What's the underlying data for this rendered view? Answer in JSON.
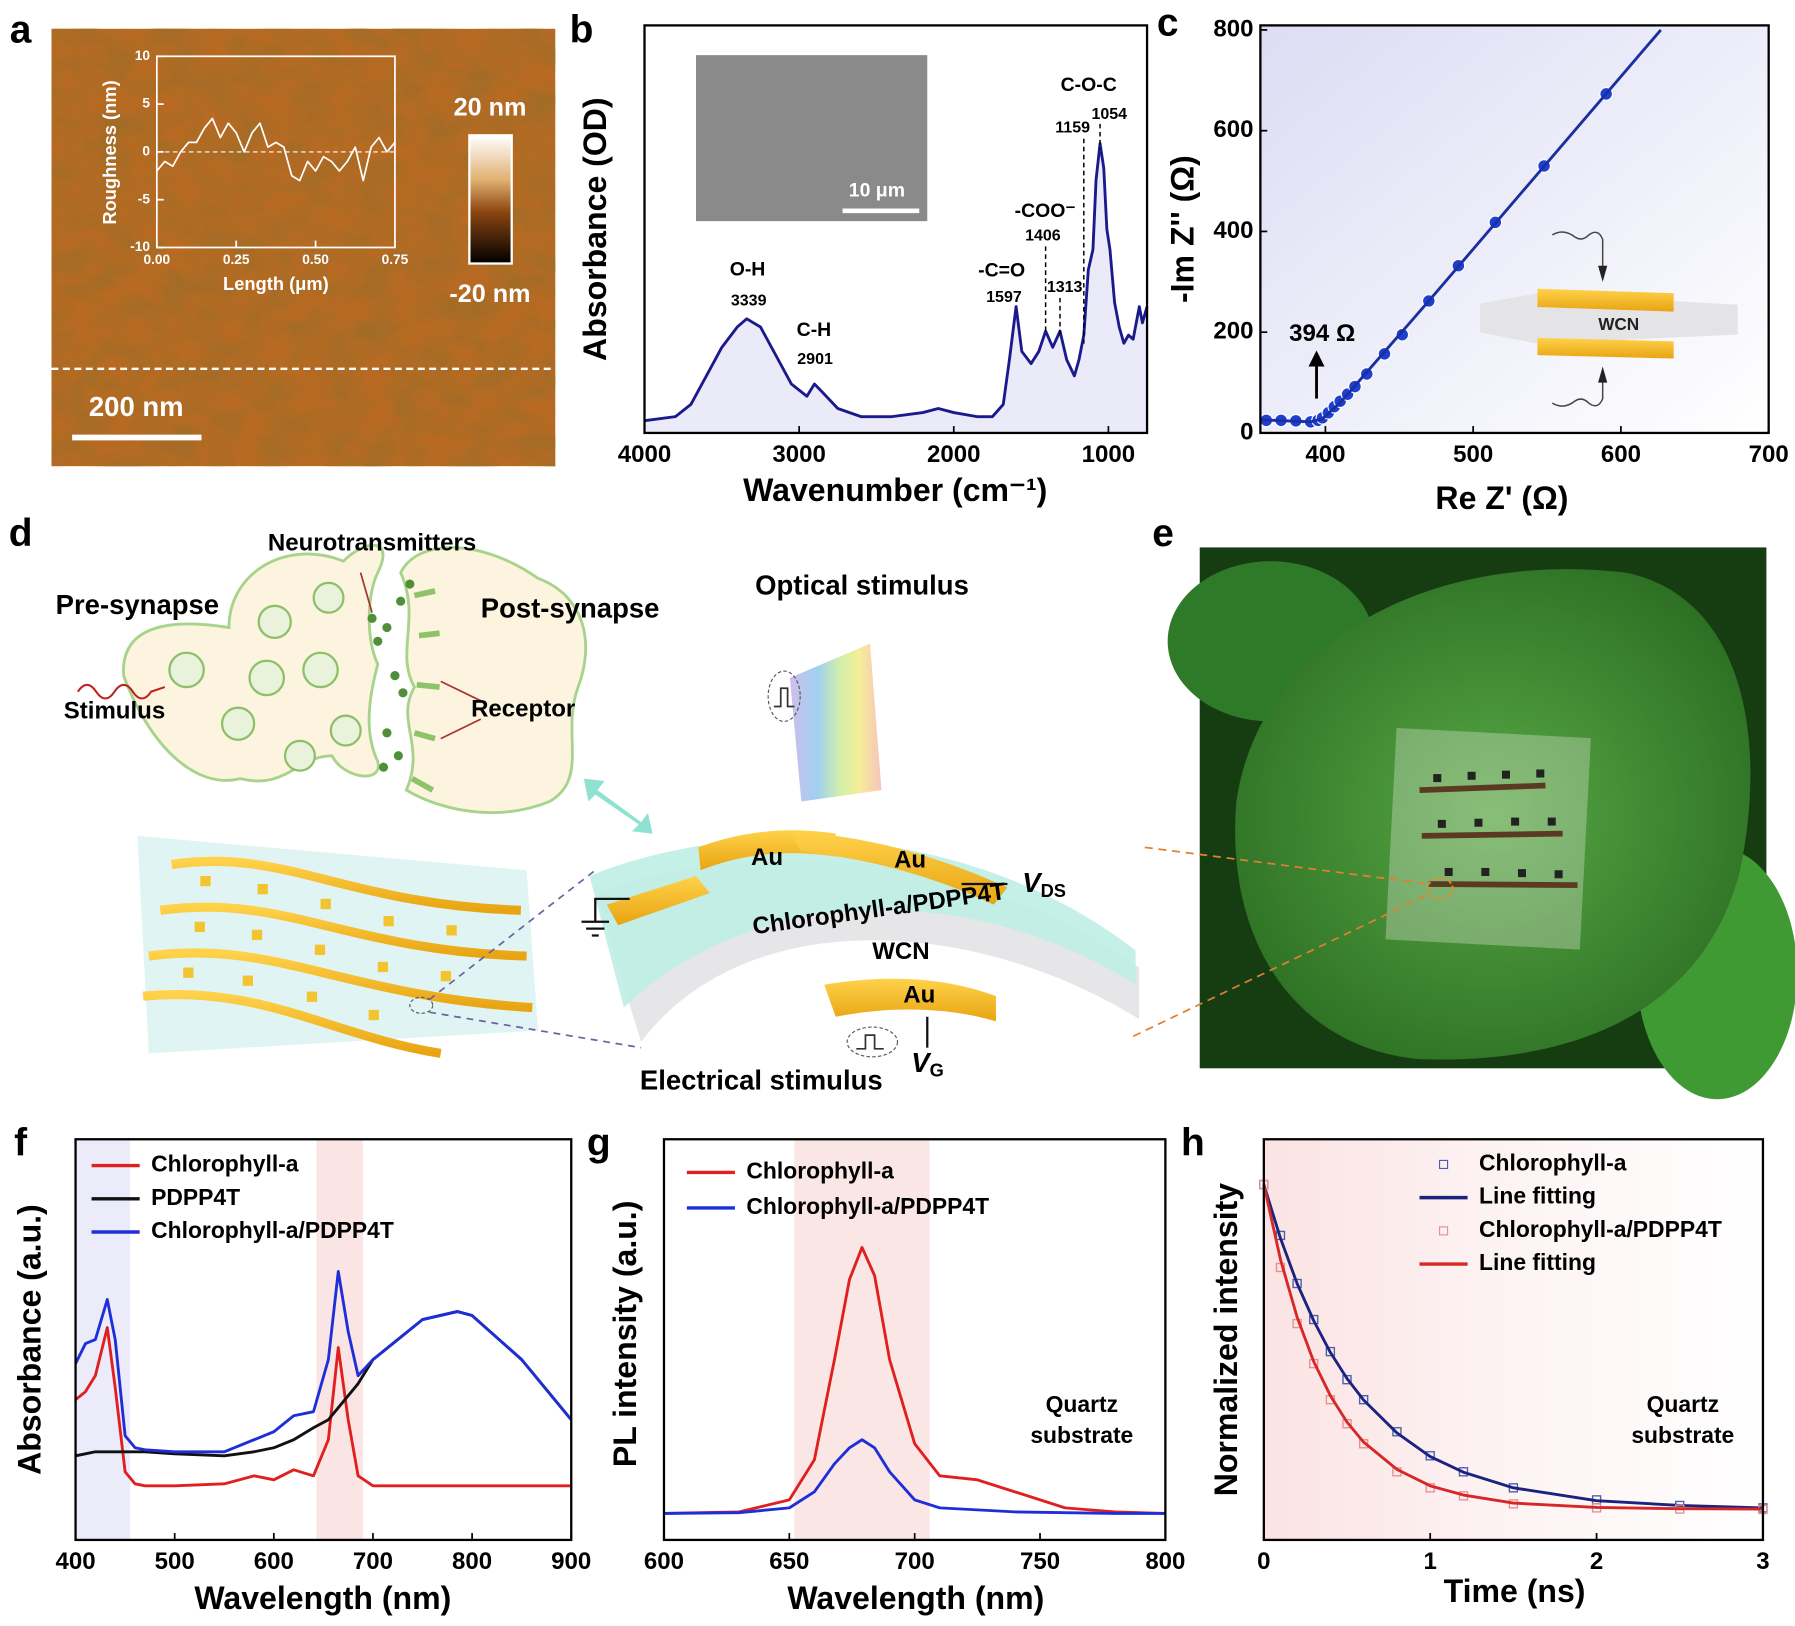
{
  "panel_labels": [
    "a",
    "b",
    "c",
    "d",
    "e",
    "f",
    "g",
    "h"
  ],
  "afm": {
    "scale_bar": "200 nm",
    "colorbar_max": "20 nm",
    "colorbar_min": "-20 nm"
  },
  "diagram": {
    "neurotransmitters": "Neurotransmitters",
    "pre_synapse": "Pre-synapse",
    "post_synapse": "Post-synapse",
    "stimulus": "Stimulus",
    "receptor": "Receptor",
    "optical_stimulus": "Optical stimulus",
    "top_electrode_left": "Au",
    "top_electrode_right": "Au",
    "drain_voltage": {
      "symbol": "V",
      "subscript": "DS"
    },
    "channel": "Chlorophyll-a/PDPP4T",
    "dielectric": "WCN",
    "gate_electrode": "Au",
    "gate_voltage": {
      "symbol": "V",
      "subscript": "G"
    },
    "electrical_stimulus": "Electrical stimulus"
  },
  "chart_data": [
    {
      "type": "line",
      "x_label": "Length (μm)",
      "y_label": "Roughness (nm)",
      "x": [
        0,
        0.025,
        0.05,
        0.075,
        0.1,
        0.125,
        0.15,
        0.175,
        0.2,
        0.225,
        0.25,
        0.275,
        0.3,
        0.325,
        0.35,
        0.375,
        0.4,
        0.425,
        0.45,
        0.475,
        0.5,
        0.525,
        0.55,
        0.575,
        0.6,
        0.625,
        0.65,
        0.675,
        0.7,
        0.725,
        0.75
      ],
      "series": [
        {
          "color": "#ffffff",
          "values": [
            -2,
            -1,
            -1.5,
            0,
            1,
            1,
            2.5,
            3.5,
            1.5,
            3,
            2,
            0,
            2,
            3,
            0.5,
            1,
            0.5,
            -2.5,
            -3,
            -1,
            -2,
            -0.5,
            -1,
            -2,
            -1,
            0.5,
            -3,
            0.5,
            1.5,
            0,
            1
          ]
        }
      ],
      "xlim": [
        0,
        0.75
      ],
      "ylim": [
        -10,
        10
      ],
      "xticks": [
        {
          "value": 0,
          "label": "0.00"
        },
        {
          "value": 0.25,
          "label": "0.25"
        },
        {
          "value": 0.5,
          "label": "0.50"
        },
        {
          "value": 0.75,
          "label": "0.75"
        }
      ],
      "yticks": [
        -10,
        -5,
        0,
        5,
        10
      ]
    },
    {
      "type": "line",
      "x_label": "Wavenumber (cm⁻¹)",
      "y_label": "Absorbance (OD)",
      "inset_scale": "10 μm",
      "x": [
        4000,
        3800,
        3700,
        3600,
        3500,
        3400,
        3339,
        3250,
        3150,
        3050,
        2950,
        2901,
        2850,
        2750,
        2600,
        2400,
        2200,
        2100,
        2000,
        1850,
        1750,
        1680,
        1640,
        1597,
        1560,
        1500,
        1450,
        1406,
        1360,
        1313,
        1270,
        1220,
        1190,
        1159,
        1130,
        1100,
        1080,
        1054,
        1030,
        1010,
        990,
        960,
        930,
        900,
        870,
        840,
        800,
        780,
        750
      ],
      "series": [
        {
          "color": "#1a1a8c",
          "fill": "#eaeaf9",
          "values": [
            0.03,
            0.04,
            0.07,
            0.14,
            0.21,
            0.26,
            0.28,
            0.26,
            0.19,
            0.12,
            0.09,
            0.12,
            0.1,
            0.06,
            0.04,
            0.04,
            0.05,
            0.06,
            0.05,
            0.04,
            0.04,
            0.07,
            0.18,
            0.31,
            0.2,
            0.17,
            0.2,
            0.25,
            0.21,
            0.25,
            0.18,
            0.14,
            0.18,
            0.24,
            0.4,
            0.45,
            0.62,
            0.71,
            0.65,
            0.5,
            0.45,
            0.32,
            0.26,
            0.22,
            0.24,
            0.23,
            0.31,
            0.27,
            0.31
          ]
        }
      ],
      "xlim": [
        4000,
        750
      ],
      "ylim": [
        0,
        1
      ],
      "xticks": [
        4000,
        3000,
        2000,
        1000
      ],
      "peaks": [
        {
          "name": "O-H",
          "values": [
            3339
          ]
        },
        {
          "name": "C-H",
          "values": [
            2901
          ]
        },
        {
          "name": "-C=O",
          "values": [
            1597
          ]
        },
        {
          "name": "-COO⁻",
          "values": [
            1406
          ]
        },
        {
          "values": [
            1313
          ]
        },
        {
          "name": "C-O-C",
          "values": [
            1159,
            1054
          ]
        }
      ]
    },
    {
      "type": "scatter",
      "x_label": "Re Z' (Ω)",
      "y_label": "-Im Z'' (Ω)",
      "inset_label": "WCN",
      "series": [
        {
          "color": "#1f3fd0",
          "mode": "markers",
          "marker": "circle",
          "x": [
            360,
            370,
            380,
            390,
            395,
            398,
            402,
            406,
            410,
            415,
            420,
            428,
            440,
            452,
            470,
            490,
            515,
            548,
            590
          ],
          "values": [
            25,
            25,
            24,
            22,
            25,
            30,
            40,
            52,
            63,
            77,
            92,
            117,
            157,
            195,
            262,
            332,
            418,
            530,
            673
          ]
        },
        {
          "color": "#1a2fa0",
          "mode": "line",
          "x": [
            356,
            390,
            398,
            410,
            470,
            627
          ],
          "values": [
            26,
            22,
            28,
            60,
            262,
            800
          ]
        }
      ],
      "xlim": [
        356,
        700
      ],
      "ylim": [
        0,
        809
      ],
      "xticks": [
        400,
        500,
        600,
        700
      ],
      "yticks": [
        0,
        200,
        400,
        600,
        800
      ],
      "annotation": {
        "value": 394,
        "label": "394 Ω"
      }
    },
    {
      "type": "line",
      "x_label": "Wavelength (nm)",
      "y_label": "Absorbance (a.u.)",
      "legend": "upper left",
      "x": [
        400,
        410,
        420,
        432,
        440,
        450,
        460,
        470,
        500,
        550,
        580,
        600,
        620,
        640,
        655,
        665,
        675,
        685,
        700,
        750,
        785,
        800,
        850,
        900
      ],
      "series": [
        {
          "name": "Chlorophyll-a",
          "color": "#e02020",
          "values": [
            0.35,
            0.37,
            0.41,
            0.53,
            0.38,
            0.17,
            0.14,
            0.135,
            0.135,
            0.14,
            0.16,
            0.15,
            0.175,
            0.16,
            0.25,
            0.48,
            0.3,
            0.16,
            0.135,
            0.135,
            0.135,
            0.135,
            0.135,
            0.135
          ]
        },
        {
          "name": "PDPP4T",
          "color": "#111111",
          "values": [
            0.21,
            0.215,
            0.22,
            0.22,
            0.22,
            0.22,
            0.22,
            0.22,
            0.215,
            0.21,
            0.22,
            0.23,
            0.25,
            0.28,
            0.3,
            0.33,
            0.36,
            0.39,
            0.45,
            0.55,
            0.57,
            0.56,
            0.45,
            0.3
          ]
        },
        {
          "name": "Chlorophyll-a/PDPP4T",
          "color": "#1f2fd8",
          "values": [
            0.44,
            0.49,
            0.5,
            0.6,
            0.5,
            0.26,
            0.23,
            0.225,
            0.22,
            0.22,
            0.25,
            0.27,
            0.31,
            0.32,
            0.45,
            0.67,
            0.52,
            0.41,
            0.45,
            0.55,
            0.57,
            0.56,
            0.45,
            0.3
          ]
        }
      ],
      "xlim": [
        400,
        900
      ],
      "ylim": [
        0,
        1
      ],
      "xticks": [
        400,
        500,
        600,
        700,
        800,
        900
      ],
      "bands": [
        {
          "range": [
            400,
            455
          ],
          "color": "#ebebfa"
        },
        {
          "range": [
            643,
            690
          ],
          "color": "#fae4e4"
        }
      ]
    },
    {
      "type": "line",
      "x_label": "Wavelength (nm)",
      "y_label": "PL intensity (a.u.)",
      "legend": "upper left",
      "notes": [
        "Quartz",
        "substrate"
      ],
      "x": [
        600,
        630,
        650,
        660,
        668,
        674,
        679,
        684,
        690,
        700,
        710,
        725,
        740,
        760,
        780,
        800
      ],
      "series": [
        {
          "name": "Chlorophyll-a",
          "color": "#e02020",
          "values": [
            0.066,
            0.07,
            0.1,
            0.2,
            0.45,
            0.65,
            0.73,
            0.66,
            0.45,
            0.24,
            0.16,
            0.15,
            0.12,
            0.08,
            0.07,
            0.066
          ]
        },
        {
          "name": "Chlorophyll-a/PDPP4T",
          "color": "#1f2fd8",
          "values": [
            0.066,
            0.068,
            0.08,
            0.12,
            0.19,
            0.23,
            0.25,
            0.23,
            0.17,
            0.1,
            0.08,
            0.075,
            0.07,
            0.068,
            0.066,
            0.066
          ]
        }
      ],
      "xlim": [
        600,
        800
      ],
      "ylim": [
        0,
        1
      ],
      "xticks": [
        600,
        650,
        700,
        750,
        800
      ],
      "bands": [
        {
          "range": [
            652,
            706
          ],
          "color": "#fbe6e6"
        }
      ]
    },
    {
      "type": "scatter",
      "x_label": "Time (ns)",
      "y_label": "Normalized intensity",
      "legend": "upper right",
      "notes": [
        "Quartz",
        "substrate"
      ],
      "x": [
        0,
        0.1,
        0.2,
        0.3,
        0.4,
        0.5,
        0.6,
        0.8,
        1.0,
        1.2,
        1.5,
        2.0,
        2.5,
        3.0
      ],
      "series": [
        {
          "name": "Chlorophyll-a",
          "color": "#4a5fb0",
          "mode": "markers",
          "marker": "square",
          "values": [
            0.887,
            0.76,
            0.64,
            0.55,
            0.47,
            0.4,
            0.35,
            0.27,
            0.21,
            0.17,
            0.13,
            0.1,
            0.086,
            0.08
          ]
        },
        {
          "name": "Line fitting",
          "color": "#1a237e",
          "mode": "line",
          "values": [
            0.887,
            0.753,
            0.64,
            0.547,
            0.468,
            0.403,
            0.349,
            0.267,
            0.208,
            0.169,
            0.13,
            0.098,
            0.086,
            0.08
          ]
        },
        {
          "name": "Chlorophyll-a/PDPP4T",
          "color": "#e89090",
          "mode": "markers",
          "marker": "square",
          "values": [
            0.887,
            0.68,
            0.54,
            0.44,
            0.35,
            0.29,
            0.24,
            0.17,
            0.13,
            0.11,
            0.09,
            0.08,
            0.077,
            0.076
          ]
        },
        {
          "name": "Line fitting",
          "color": "#d62828",
          "mode": "line",
          "values": [
            0.887,
            0.7,
            0.556,
            0.445,
            0.36,
            0.294,
            0.244,
            0.176,
            0.135,
            0.112,
            0.092,
            0.081,
            0.078,
            0.077
          ]
        }
      ],
      "xlim": [
        0,
        3
      ],
      "ylim": [
        0,
        1
      ],
      "xticks": [
        0,
        1,
        2,
        3
      ]
    }
  ]
}
